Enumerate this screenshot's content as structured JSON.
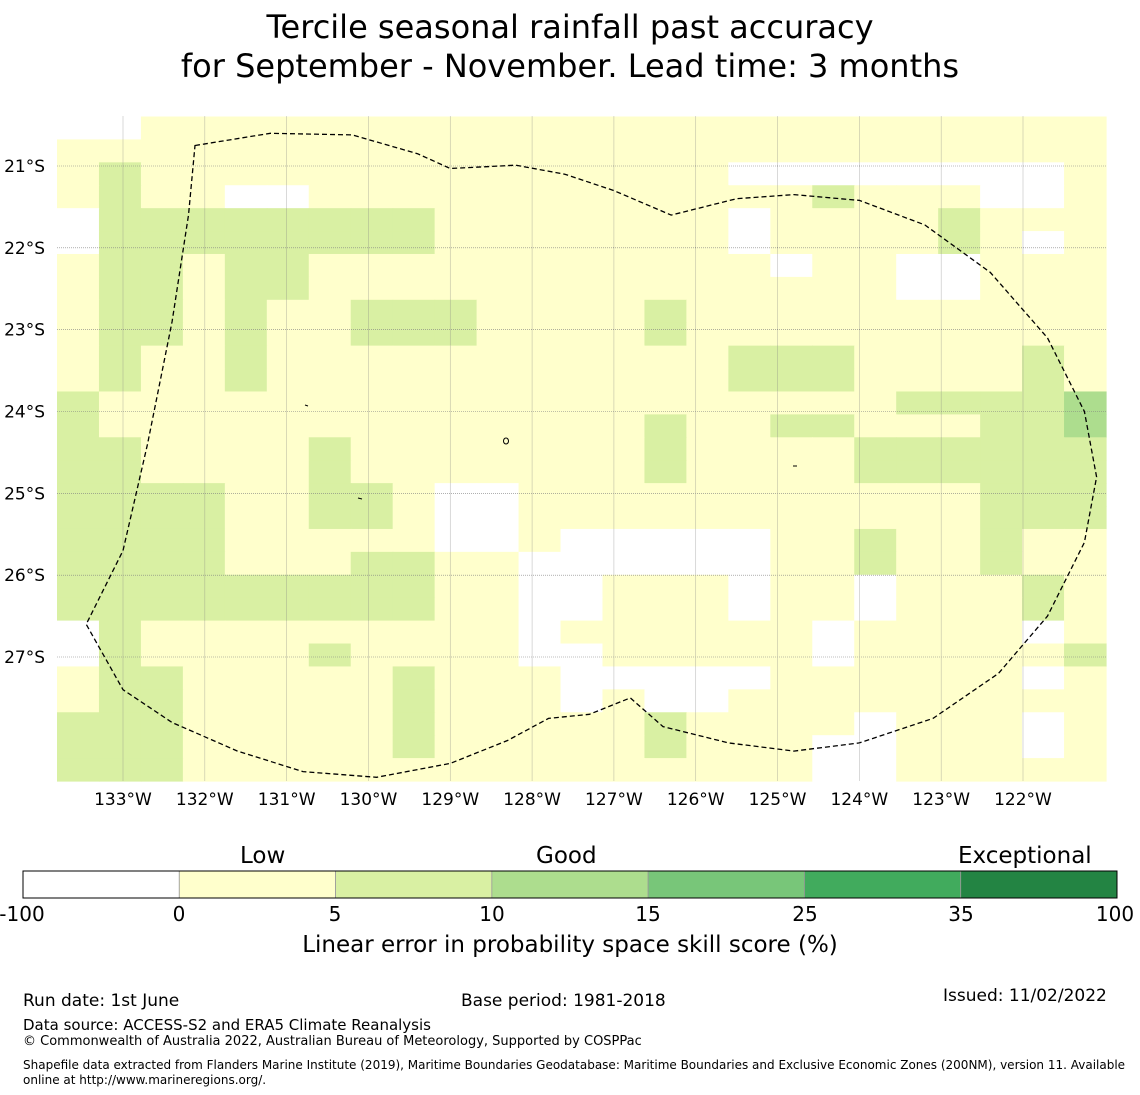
{
  "title": {
    "line1": "Tercile seasonal rainfall past accuracy",
    "line2": "for September - November. Lead time: 3 months"
  },
  "map": {
    "lon_labels": [
      "133°W",
      "132°W",
      "131°W",
      "130°W",
      "129°W",
      "128°W",
      "127°W",
      "126°W",
      "125°W",
      "124°W",
      "123°W",
      "122°W"
    ],
    "lat_labels": [
      "21°S",
      "22°S",
      "23°S",
      "24°S",
      "25°S",
      "26°S",
      "27°S"
    ],
    "lon_values": [
      -133,
      -132,
      -131,
      -130,
      -129,
      -128,
      -127,
      -126,
      -125,
      -124,
      -123,
      -122
    ],
    "lat_values": [
      -21,
      -22,
      -23,
      -24,
      -25,
      -26,
      -27
    ],
    "grid_lon_range": [
      -133.8,
      -121.0
    ],
    "grid_lat_range": [
      -20.45,
      -28.6
    ],
    "cell_size_lon": 0.8333,
    "cell_size_lat": 0.5556,
    "category_codes": "0 = -100 to 0 (white), 1 = 0 to 5, 2 = 5 to 10, 3 = 10 to 15",
    "cells": [
      "8811111111119911111111111",
      "1111111111111911111111111",
      "1211111111111111888888881",
      "1211001111111111112111881",
      "8222222221111111011112111",
      "8222222221111111011112101",
      "1221221111111111101100111",
      "1221221111111111111100111",
      "1221211222111121111111111",
      "1221211222111121111111111",
      "1211211111111111222111121",
      "1211211111111111222111121",
      "2111111111111111111122223",
      "2111111111111121122111223",
      "2211112111111121111222222",
      "2211112111111121111222222",
      "2222112210011111111111222",
      "2222112210011111111111222",
      "2222111110010000011211211",
      "2222111221100000011211211",
      "2222222221100111011011121",
      "2222222221100111011011121",
      "0211111111101111110111101",
      "0211112111100111110111112",
      "1221111121110000011111101",
      "1221111121110100111111111",
      "2221111121111121111011101",
      "2221111121111121110011101",
      "2221111111111111110011111"
    ],
    "boundary_lonlat": [
      [
        -132.12,
        -20.75
      ],
      [
        -131.2,
        -20.6
      ],
      [
        -130.2,
        -20.62
      ],
      [
        -129.4,
        -20.85
      ],
      [
        -129.0,
        -21.03
      ],
      [
        -128.2,
        -20.99
      ],
      [
        -127.6,
        -21.1
      ],
      [
        -127.0,
        -21.3
      ],
      [
        -126.3,
        -21.6
      ],
      [
        -125.5,
        -21.4
      ],
      [
        -124.8,
        -21.35
      ],
      [
        -124.0,
        -21.42
      ],
      [
        -123.2,
        -21.72
      ],
      [
        -122.4,
        -22.3
      ],
      [
        -121.7,
        -23.1
      ],
      [
        -121.25,
        -24.0
      ],
      [
        -121.1,
        -24.8
      ],
      [
        -121.25,
        -25.6
      ],
      [
        -121.7,
        -26.5
      ],
      [
        -122.3,
        -27.2
      ],
      [
        -123.1,
        -27.75
      ],
      [
        -124.0,
        -28.05
      ],
      [
        -124.8,
        -28.15
      ],
      [
        -125.6,
        -28.05
      ],
      [
        -126.4,
        -27.85
      ],
      [
        -126.8,
        -27.5
      ],
      [
        -127.3,
        -27.7
      ],
      [
        -127.8,
        -27.75
      ],
      [
        -128.3,
        -28.02
      ],
      [
        -129.0,
        -28.3
      ],
      [
        -129.9,
        -28.47
      ],
      [
        -130.8,
        -28.4
      ],
      [
        -131.6,
        -28.15
      ],
      [
        -132.4,
        -27.8
      ],
      [
        -133.0,
        -27.4
      ],
      [
        -133.45,
        -26.6
      ],
      [
        -133.0,
        -25.7
      ],
      [
        -132.7,
        -24.4
      ],
      [
        -132.4,
        -22.9
      ],
      [
        -132.2,
        -21.6
      ],
      [
        -132.12,
        -20.75
      ]
    ]
  },
  "colorbar": {
    "category_labels": [
      "Low",
      "Good",
      "Exceptional"
    ],
    "ticks": [
      "-100",
      "0",
      "5",
      "10",
      "15",
      "25",
      "35",
      "100"
    ],
    "colors": [
      "#ffffff",
      "#ffffcc",
      "#d9f0a3",
      "#addd8e",
      "#78c679",
      "#41ab5d",
      "#238443"
    ],
    "label": "Linear error in probability space skill score (%)"
  },
  "footer": {
    "run_date": "Run date: 1st June",
    "base_period": "Base period: 1981-2018",
    "issued": "Issued: 11/02/2022",
    "data_source": "Data source: ACCESS-S2 and ERA5 Climate Reanalysis",
    "copyright": "© Commonwealth of Australia 2022, Australian Bureau of Meteorology, Supported by COSPPac",
    "shapefile": "Shapefile data extracted from Flanders Marine Institute (2019), Maritime Boundaries Geodatabase: Maritime Boundaries and Exclusive Economic Zones (200NM), version 11. Available online at http://www.marineregions.org/."
  }
}
